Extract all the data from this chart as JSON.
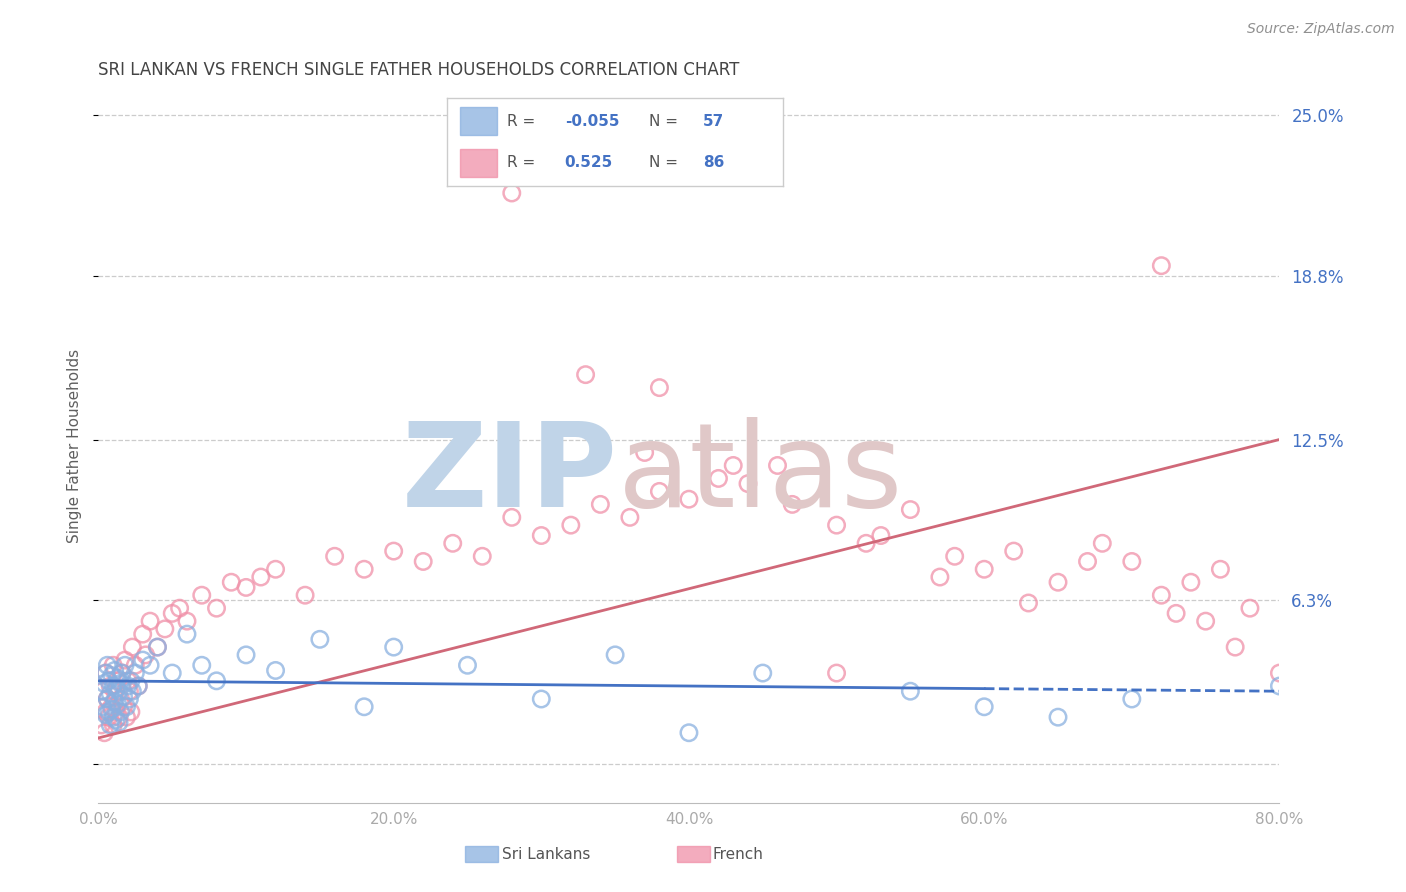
{
  "title": "SRI LANKAN VS FRENCH SINGLE FATHER HOUSEHOLDS CORRELATION CHART",
  "source": "Source: ZipAtlas.com",
  "ylabel": "Single Father Households",
  "xlim": [
    0.0,
    80.0
  ],
  "ylim": [
    -1.5,
    26.0
  ],
  "ytick_vals": [
    0.0,
    6.3,
    12.5,
    18.8,
    25.0
  ],
  "ytick_labels_right": [
    "",
    "6.3%",
    "12.5%",
    "18.8%",
    "25.0%"
  ],
  "xtick_vals": [
    0.0,
    20.0,
    40.0,
    60.0,
    80.0
  ],
  "xtick_labels": [
    "0.0%",
    "20.0%",
    "40.0%",
    "60.0%",
    "80.0%"
  ],
  "sri_lankans_R": -0.055,
  "sri_lankans_N": 57,
  "french_R": 0.525,
  "french_N": 86,
  "sri_lankans_color": "#8ab0e0",
  "french_color": "#f090a8",
  "sri_lankans_line_color": "#4472c4",
  "french_line_color": "#d06878",
  "axis_tick_color": "#4472c4",
  "title_color": "#444444",
  "source_color": "#909090",
  "ylabel_color": "#606060",
  "watermark_zip_color": "#c0d4e8",
  "watermark_atlas_color": "#e0c8c8",
  "sri_lankans_x": [
    0.2,
    0.3,
    0.4,
    0.5,
    0.5,
    0.6,
    0.6,
    0.7,
    0.7,
    0.8,
    0.8,
    0.9,
    0.9,
    1.0,
    1.0,
    1.1,
    1.1,
    1.2,
    1.2,
    1.3,
    1.3,
    1.4,
    1.4,
    1.5,
    1.5,
    1.6,
    1.7,
    1.8,
    1.9,
    2.0,
    2.1,
    2.2,
    2.3,
    2.5,
    2.7,
    3.0,
    3.5,
    4.0,
    5.0,
    6.0,
    7.0,
    8.0,
    10.0,
    12.0,
    15.0,
    18.0,
    20.0,
    25.0,
    30.0,
    35.0,
    40.0,
    45.0,
    55.0,
    60.0,
    65.0,
    70.0,
    80.0
  ],
  "sri_lankans_y": [
    2.8,
    2.2,
    3.1,
    1.9,
    3.5,
    2.5,
    3.8,
    2.0,
    3.2,
    1.5,
    2.7,
    2.1,
    3.4,
    1.8,
    3.0,
    2.4,
    3.6,
    1.7,
    2.9,
    2.3,
    3.3,
    1.6,
    2.8,
    2.0,
    3.1,
    3.5,
    2.6,
    3.8,
    2.2,
    3.0,
    2.5,
    3.2,
    2.8,
    3.5,
    3.0,
    4.0,
    3.8,
    4.5,
    3.5,
    5.0,
    3.8,
    3.2,
    4.2,
    3.6,
    4.8,
    2.2,
    4.5,
    3.8,
    2.5,
    4.2,
    1.2,
    3.5,
    2.8,
    2.2,
    1.8,
    2.5,
    3.0
  ],
  "french_x": [
    0.2,
    0.3,
    0.4,
    0.5,
    0.5,
    0.6,
    0.7,
    0.8,
    0.9,
    1.0,
    1.0,
    1.1,
    1.2,
    1.3,
    1.4,
    1.5,
    1.6,
    1.7,
    1.8,
    1.9,
    2.0,
    2.1,
    2.2,
    2.3,
    2.5,
    2.7,
    3.0,
    3.2,
    3.5,
    4.0,
    4.5,
    5.0,
    5.5,
    6.0,
    7.0,
    8.0,
    9.0,
    10.0,
    11.0,
    12.0,
    14.0,
    16.0,
    18.0,
    20.0,
    22.0,
    24.0,
    26.0,
    28.0,
    30.0,
    32.0,
    34.0,
    36.0,
    38.0,
    40.0,
    42.0,
    44.0,
    46.0,
    50.0,
    52.0,
    55.0,
    58.0,
    60.0,
    62.0,
    65.0,
    68.0,
    70.0,
    72.0,
    74.0,
    75.0,
    76.0,
    78.0,
    80.0,
    33.0,
    37.0,
    43.0,
    47.0,
    53.0,
    57.0,
    63.0,
    67.0,
    73.0,
    77.0,
    38.0,
    28.0,
    50.0,
    72.0
  ],
  "french_y": [
    1.5,
    2.8,
    1.2,
    3.5,
    2.0,
    2.5,
    1.8,
    3.0,
    2.2,
    1.5,
    3.8,
    2.8,
    2.0,
    3.2,
    1.8,
    2.5,
    3.5,
    2.2,
    4.0,
    1.8,
    3.2,
    2.8,
    2.0,
    4.5,
    3.8,
    3.0,
    5.0,
    4.2,
    5.5,
    4.5,
    5.2,
    5.8,
    6.0,
    5.5,
    6.5,
    6.0,
    7.0,
    6.8,
    7.2,
    7.5,
    6.5,
    8.0,
    7.5,
    8.2,
    7.8,
    8.5,
    8.0,
    9.5,
    8.8,
    9.2,
    10.0,
    9.5,
    10.5,
    10.2,
    11.0,
    10.8,
    11.5,
    9.2,
    8.5,
    9.8,
    8.0,
    7.5,
    8.2,
    7.0,
    8.5,
    7.8,
    6.5,
    7.0,
    5.5,
    7.5,
    6.0,
    3.5,
    15.0,
    12.0,
    11.5,
    10.0,
    8.8,
    7.2,
    6.2,
    7.8,
    5.8,
    4.5,
    14.5,
    22.0,
    3.5,
    19.2
  ]
}
